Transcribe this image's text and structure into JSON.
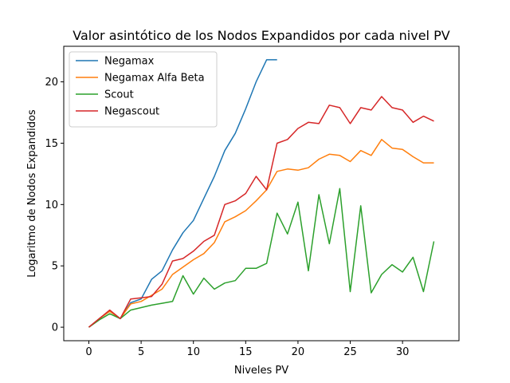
{
  "chart_data": {
    "type": "line",
    "title": "Valor asintótico de los Nodos Expandidos por cada nivel PV",
    "xlabel": "Niveles PV",
    "ylabel": "Logaritmo de Nodos Expandidos",
    "xlim": [
      -2.4,
      35.4
    ],
    "ylim": [
      -1.1,
      22.9
    ],
    "xticks": [
      0,
      5,
      10,
      15,
      20,
      25,
      30
    ],
    "yticks": [
      0,
      5,
      10,
      15,
      20
    ],
    "grid": false,
    "legend_position": "top-left",
    "series": [
      {
        "name": "Negamax",
        "color": "#1f77b4",
        "x": [
          0,
          1,
          2,
          3,
          4,
          5,
          6,
          7,
          8,
          9,
          10,
          11,
          12,
          13,
          14,
          15,
          16,
          17,
          18
        ],
        "y": [
          0,
          0.7,
          1.3,
          0.7,
          2.0,
          2.3,
          3.9,
          4.6,
          6.3,
          7.7,
          8.7,
          10.5,
          12.3,
          14.4,
          15.8,
          17.8,
          20.0,
          21.8,
          21.8
        ]
      },
      {
        "name": "Negamax Alfa Beta",
        "color": "#ff7f0e",
        "x": [
          0,
          1,
          2,
          3,
          4,
          5,
          6,
          7,
          8,
          9,
          10,
          11,
          12,
          13,
          14,
          15,
          16,
          17,
          18,
          19,
          20,
          21,
          22,
          23,
          24,
          25,
          26,
          27,
          28,
          29,
          30,
          31,
          32,
          33
        ],
        "y": [
          0,
          0.7,
          1.3,
          0.7,
          1.9,
          2.1,
          2.6,
          3.1,
          4.3,
          4.9,
          5.5,
          6.0,
          6.9,
          8.6,
          9.0,
          9.5,
          10.3,
          11.2,
          12.7,
          12.9,
          12.8,
          13.0,
          13.7,
          14.1,
          14.0,
          13.5,
          14.4,
          14.0,
          15.3,
          14.6,
          14.5,
          13.9,
          13.4,
          13.4
        ]
      },
      {
        "name": "Scout",
        "color": "#2ca02c",
        "x": [
          0,
          1,
          2,
          3,
          4,
          5,
          6,
          7,
          8,
          9,
          10,
          11,
          12,
          13,
          14,
          15,
          16,
          17,
          18,
          19,
          20,
          21,
          22,
          23,
          24,
          25,
          26,
          27,
          28,
          29,
          30,
          31,
          32,
          33
        ],
        "y": [
          0,
          0.6,
          1.1,
          0.7,
          1.4,
          1.6,
          1.8,
          1.95,
          2.1,
          4.2,
          2.7,
          4.0,
          3.1,
          3.6,
          3.8,
          4.8,
          4.8,
          5.2,
          9.3,
          7.6,
          10.2,
          4.6,
          10.8,
          6.8,
          11.3,
          2.9,
          9.9,
          2.8,
          4.3,
          5.1,
          4.5,
          5.7,
          2.9,
          7.0
        ]
      },
      {
        "name": "Negascout",
        "color": "#d62728",
        "x": [
          0,
          1,
          2,
          3,
          4,
          5,
          6,
          7,
          8,
          9,
          10,
          11,
          12,
          13,
          14,
          15,
          16,
          17,
          18,
          19,
          20,
          21,
          22,
          23,
          24,
          25,
          26,
          27,
          28,
          29,
          30,
          31,
          32,
          33
        ],
        "y": [
          0,
          0.7,
          1.4,
          0.7,
          2.3,
          2.4,
          2.5,
          3.5,
          5.4,
          5.6,
          6.2,
          7.0,
          7.5,
          10.0,
          10.3,
          10.9,
          12.3,
          11.2,
          15.0,
          15.3,
          16.2,
          16.7,
          16.6,
          18.1,
          17.9,
          16.6,
          17.9,
          17.7,
          18.8,
          17.9,
          17.7,
          16.7,
          17.2,
          16.8
        ]
      }
    ]
  }
}
